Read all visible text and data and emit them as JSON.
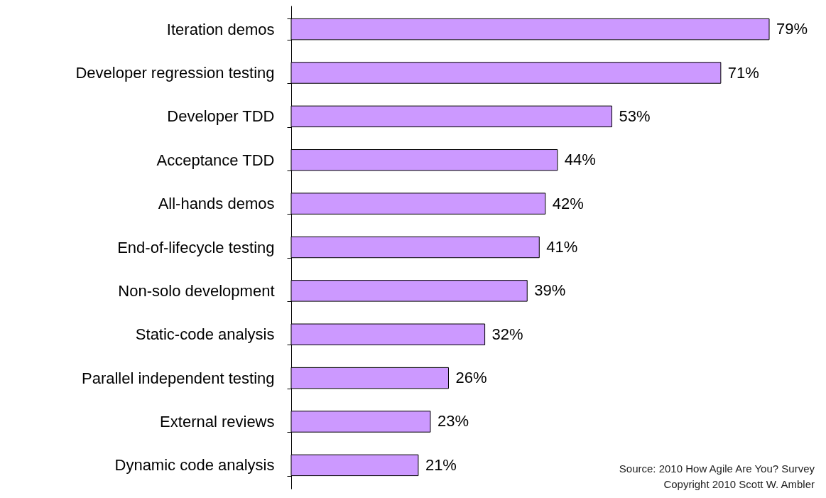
{
  "chart_data": {
    "type": "bar",
    "orientation": "horizontal",
    "categories": [
      "Iteration demos",
      "Developer regression testing",
      "Developer TDD",
      "Acceptance TDD",
      "All-hands demos",
      "End-of-lifecycle testing",
      "Non-solo development",
      "Static-code analysis",
      "Parallel independent testing",
      "External reviews",
      "Dynamic code analysis"
    ],
    "values": [
      79,
      71,
      53,
      44,
      42,
      41,
      39,
      32,
      26,
      23,
      21
    ],
    "value_labels": [
      "79%",
      "71%",
      "53%",
      "44%",
      "42%",
      "41%",
      "39%",
      "32%",
      "26%",
      "23%",
      "21%"
    ],
    "color": "#cc99ff",
    "annotations": [
      "Source: 2010 How Agile Are You? Survey",
      "Copyright 2010 Scott W. Ambler"
    ]
  }
}
